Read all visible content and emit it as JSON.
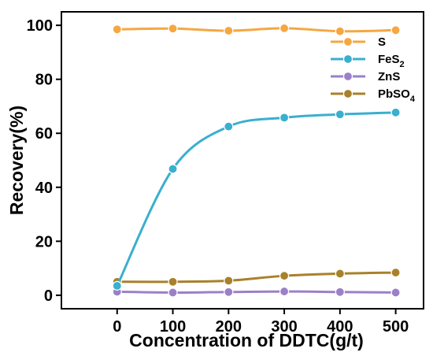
{
  "chart_data": {
    "type": "line",
    "x": [
      0,
      100,
      200,
      300,
      400,
      500
    ],
    "xlabel": "Concentration of DDTC(g/t)",
    "ylabel": "Recovery(%)",
    "xlim": [
      -100,
      550
    ],
    "ylim": [
      -5,
      105
    ],
    "xticks": [
      0,
      100,
      200,
      300,
      400,
      500
    ],
    "yticks": [
      0,
      20,
      40,
      60,
      80,
      100
    ],
    "legend_position": "top-right",
    "grid": false,
    "series": [
      {
        "name": "S",
        "sub": "",
        "color": "#F5A742",
        "values": [
          98.5,
          98.8,
          98.0,
          98.9,
          97.8,
          98.2
        ]
      },
      {
        "name": "FeS",
        "sub": "2",
        "color": "#3AAFCE",
        "values": [
          3.5,
          46.8,
          62.5,
          65.8,
          67.0,
          67.7
        ]
      },
      {
        "name": "ZnS",
        "sub": "",
        "color": "#9B80C8",
        "values": [
          1.3,
          1.0,
          1.2,
          1.4,
          1.2,
          1.0
        ]
      },
      {
        "name": "PbSO",
        "sub": "4",
        "color": "#A8812A",
        "values": [
          5.0,
          5.0,
          5.4,
          7.2,
          8.0,
          8.4
        ]
      }
    ]
  }
}
